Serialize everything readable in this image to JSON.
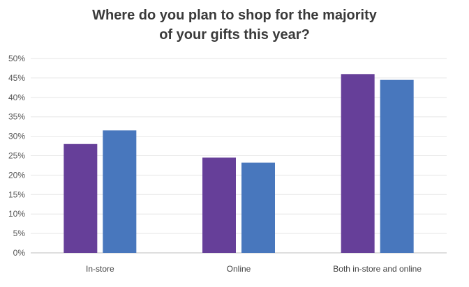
{
  "chart_data": {
    "type": "bar",
    "title_lines": [
      "Where do you plan to shop for the majority",
      "of your gifts this year?"
    ],
    "categories": [
      "In-store",
      "Online",
      "Both in-store and online"
    ],
    "series": [
      {
        "color": "#663f99",
        "values": [
          28,
          24.5,
          46
        ]
      },
      {
        "color": "#4877bd",
        "values": [
          31.5,
          23.2,
          44.5
        ]
      }
    ],
    "ylim": [
      0,
      50
    ],
    "yticks": [
      0,
      5,
      10,
      15,
      20,
      25,
      30,
      35,
      40,
      45,
      50
    ],
    "ytick_labels": [
      "0%",
      "5%",
      "10%",
      "15%",
      "20%",
      "25%",
      "30%",
      "35%",
      "40%",
      "45%",
      "50%"
    ],
    "grid": true,
    "xlabel": "",
    "ylabel": ""
  }
}
